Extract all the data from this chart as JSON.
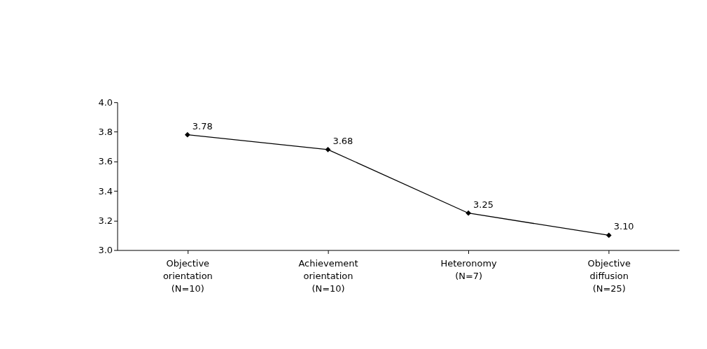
{
  "chart_data": {
    "type": "line",
    "categories": [
      "Objective\norientation\n(N=10)",
      "Achievement\norientation\n(N=10)",
      "Heteronomy\n(N=7)",
      "Objective\ndiffusion\n(N=25)"
    ],
    "series": [
      {
        "color": "#000000",
        "values": [
          3.78,
          3.68,
          3.25,
          3.1
        ],
        "value_labels": [
          "3.78",
          "3.68",
          "3.25",
          "3.10"
        ]
      }
    ],
    "ylim": [
      3.0,
      4.0
    ],
    "yticks": [
      {
        "value": 3.0,
        "label": "3.0"
      },
      3.2,
      3.4,
      3.6,
      3.8,
      {
        "value": 4.0,
        "label": "4.0"
      }
    ],
    "grid": false,
    "marker": "diamond",
    "line_style": "solid"
  }
}
